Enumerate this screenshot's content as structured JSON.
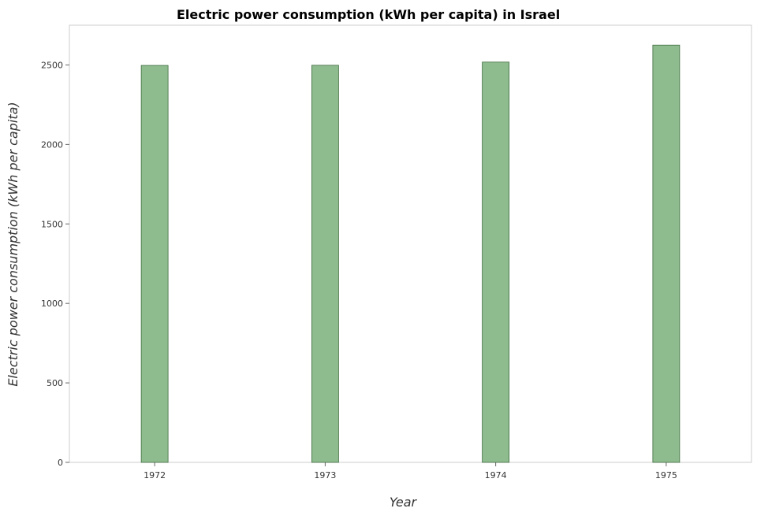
{
  "chart_data": {
    "type": "bar",
    "title": "Electric power consumption (kWh per capita) in Israel",
    "xlabel": "Year",
    "ylabel": "Electric power consumption (kWh per capita)",
    "categories": [
      "1972",
      "1973",
      "1974",
      "1975"
    ],
    "values": [
      2497,
      2498,
      2518,
      2625
    ],
    "ylim": [
      0,
      2750
    ],
    "yticks": [
      0,
      500,
      1000,
      1500,
      2000,
      2500
    ],
    "grid": false,
    "legend": "none",
    "bar_color": "#8fbc8f",
    "bar_edge_color": "#3d6b3d"
  }
}
